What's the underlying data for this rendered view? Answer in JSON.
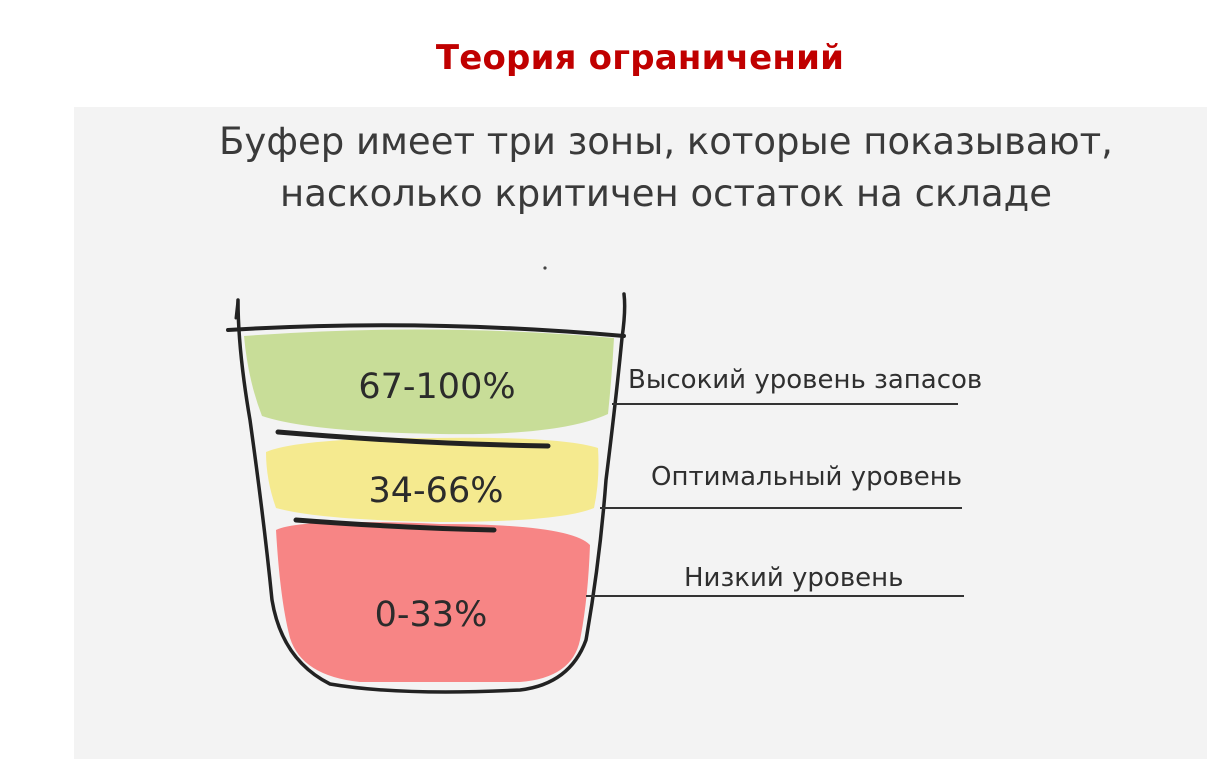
{
  "page": {
    "title": "Теория ограничений"
  },
  "headline": {
    "line1": "Буфер имеет три зоны, которые показывают,",
    "line2": "насколько критичен остаток на складе"
  },
  "zones": [
    {
      "percent": "67-100%",
      "label": "Высокий уровень запасов",
      "color": "#c8dd98"
    },
    {
      "percent": "34-66%",
      "label": "Оптимальный уровень",
      "color": "#f5ea8f"
    },
    {
      "percent": "0-33%",
      "label": "Низкий уровень",
      "color": "#f78585"
    }
  ],
  "colors": {
    "title": "#c00000",
    "panel": "#f3f3f3",
    "ink": "#222222"
  }
}
